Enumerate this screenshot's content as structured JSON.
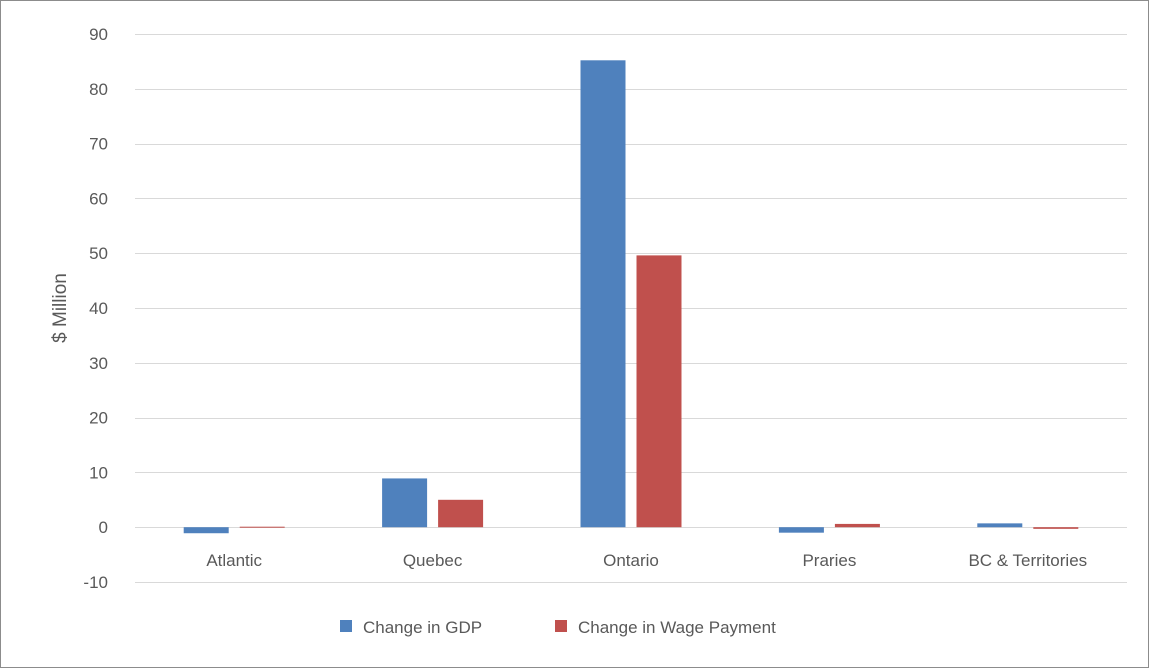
{
  "chart_data": {
    "type": "bar",
    "title": "",
    "xlabel": "",
    "ylabel": "$ Million",
    "ylim": [
      -10,
      90
    ],
    "yticks": [
      -10,
      0,
      10,
      20,
      30,
      40,
      50,
      60,
      70,
      80,
      90
    ],
    "grid": true,
    "legend_position": "bottom",
    "categories": [
      "Atlantic",
      "Quebec",
      "Ontario",
      "Praries",
      "BC & Territories"
    ],
    "series": [
      {
        "name": "Change in GDP",
        "color": "#4f81bd",
        "values": [
          -1.1,
          8.9,
          85.2,
          -1.0,
          0.7
        ]
      },
      {
        "name": "Change in Wage Payment",
        "color": "#c0504d",
        "values": [
          0.0,
          5.0,
          49.6,
          0.6,
          -0.3
        ]
      }
    ]
  }
}
